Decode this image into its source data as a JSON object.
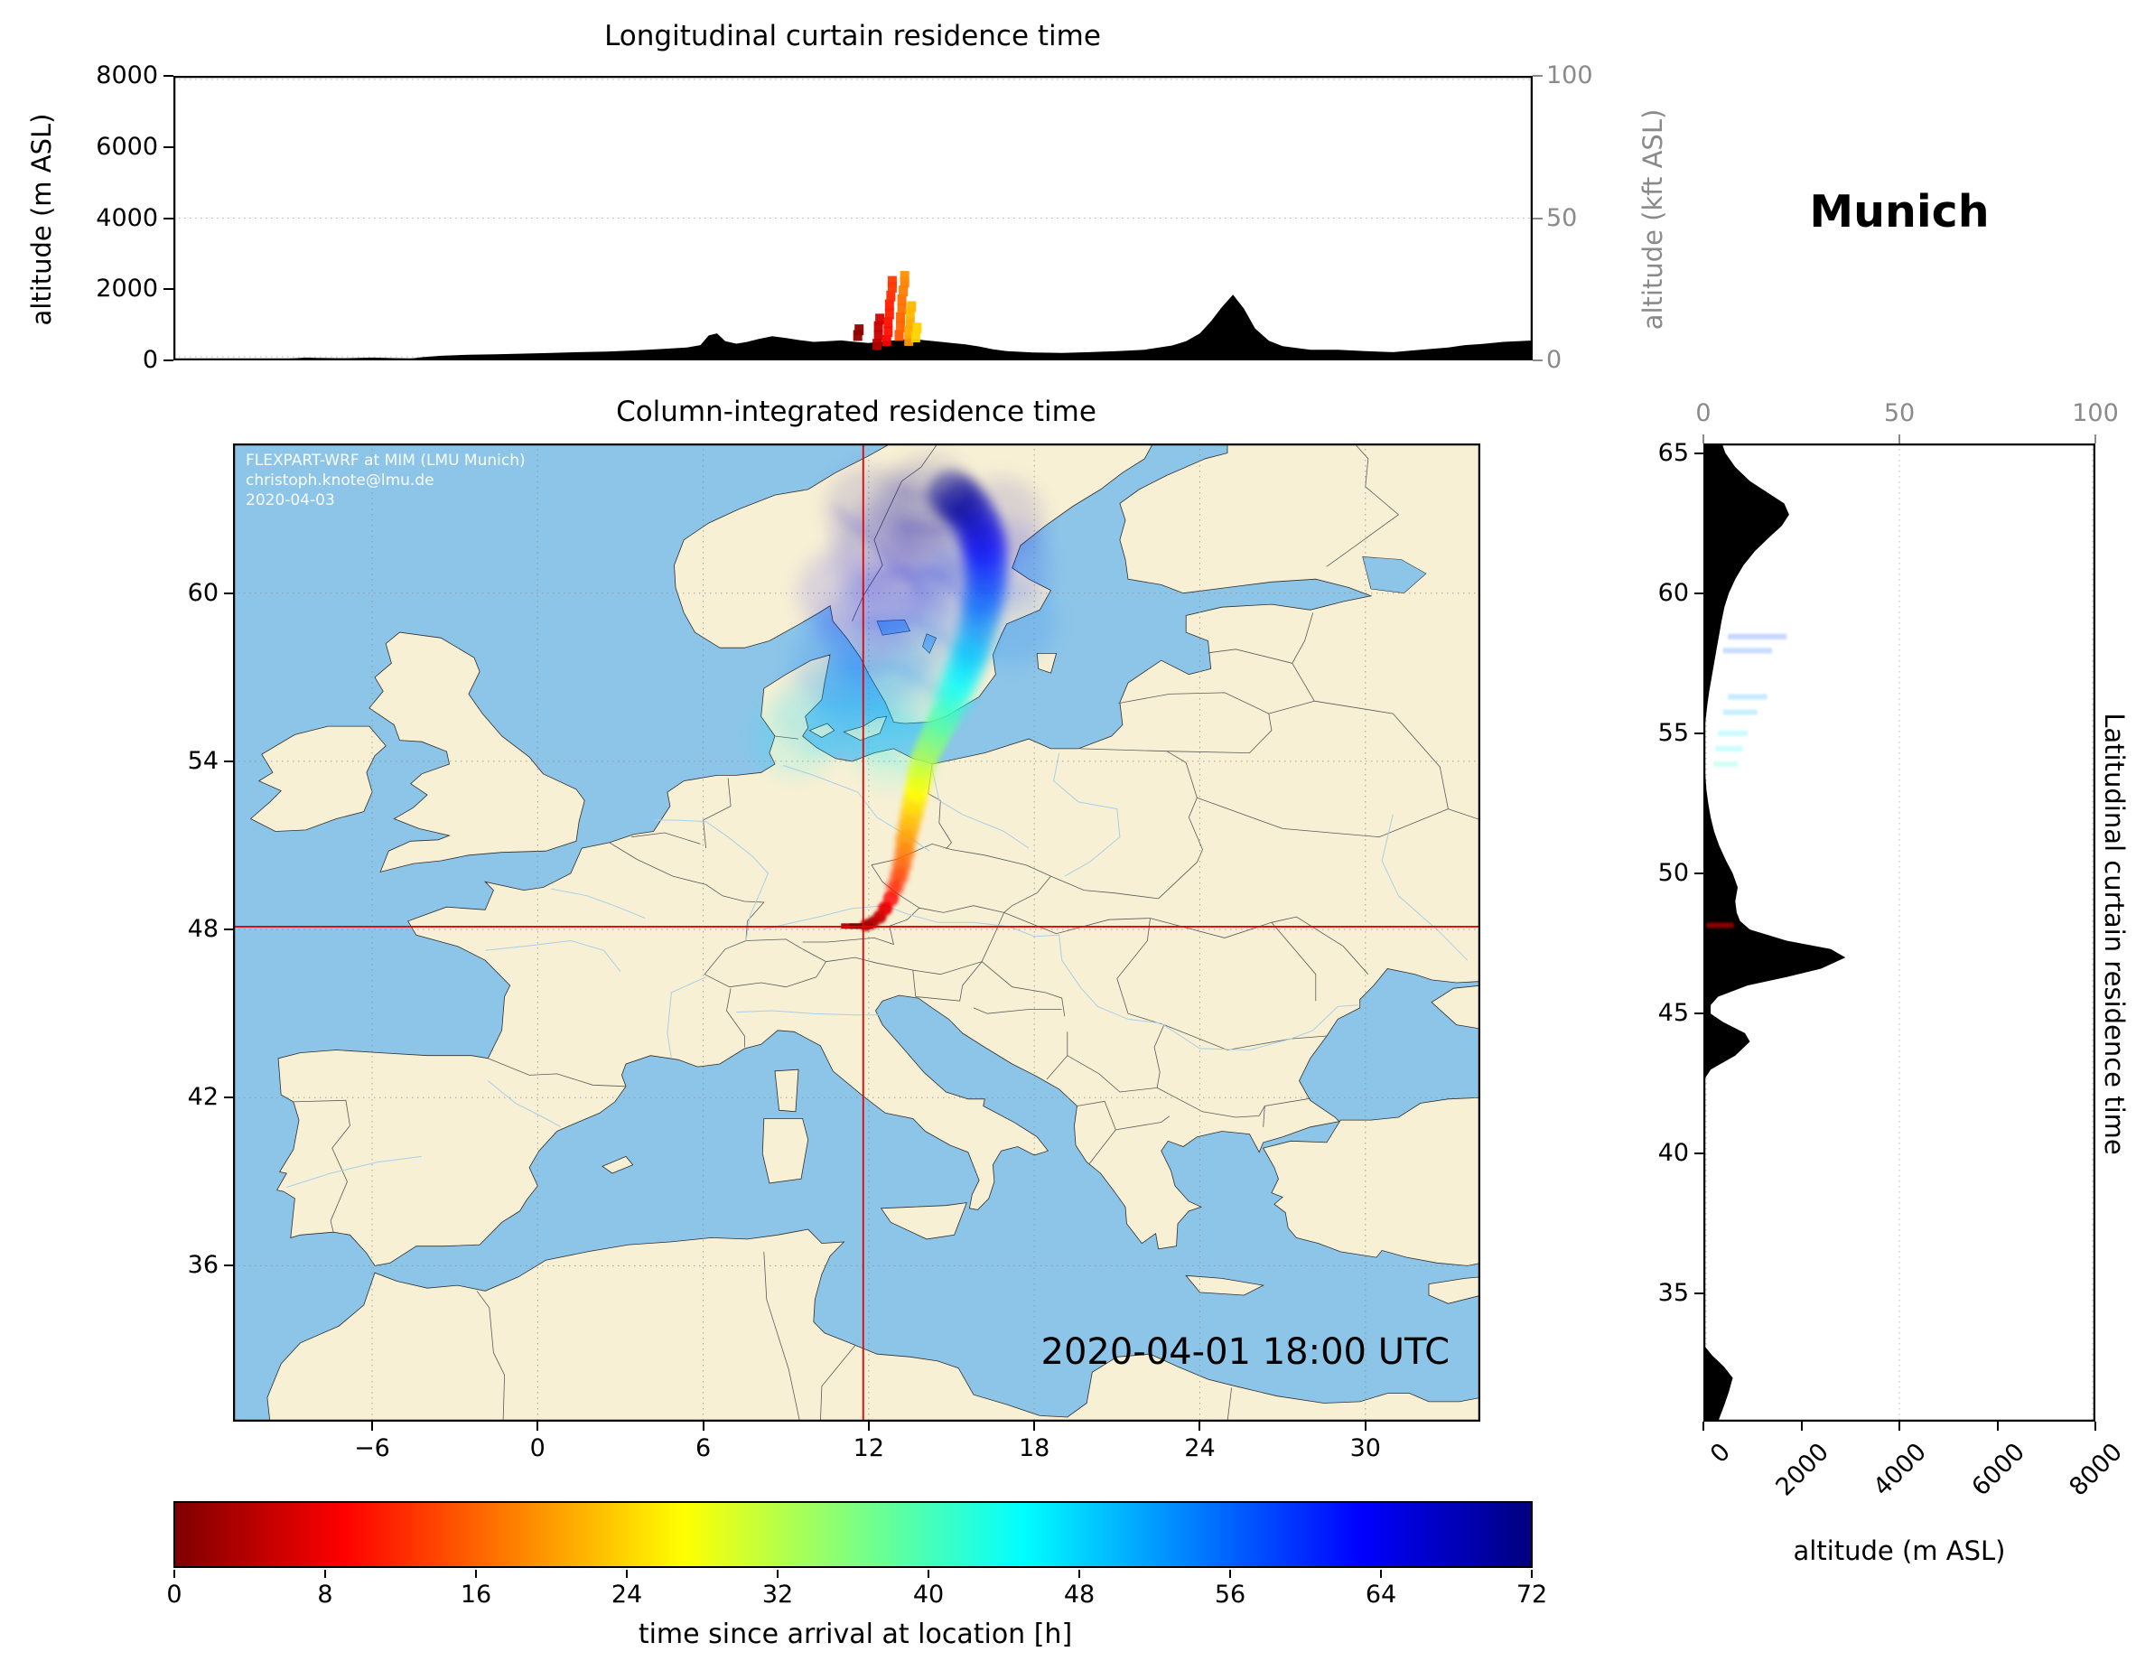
{
  "header": {
    "location_title": "Munich"
  },
  "top_panel": {
    "title": "Longitudinal curtain residence time",
    "ylabel_left": "altitude (m ASL)",
    "ylabel_right": "altitude (kft ASL)",
    "yticks_left": [
      "0",
      "2000",
      "4000",
      "6000",
      "8000"
    ],
    "yticks_right": [
      "0",
      "50",
      "100"
    ]
  },
  "map_panel": {
    "title": "Column-integrated residence time",
    "xticks": [
      "−6",
      "0",
      "6",
      "12",
      "18",
      "24",
      "30"
    ],
    "yticks": [
      "36",
      "42",
      "48",
      "54",
      "60"
    ],
    "watermark_line1": "FLEXPART-WRF at MIM (LMU Munich)",
    "watermark_line2": "christoph.knote@lmu.de",
    "watermark_line3": "2020-04-03",
    "timestamp": "2020-04-01 18:00 UTC"
  },
  "right_panel": {
    "ylabel_right": "Latitudinal curtain residence time",
    "xlabel_bottom": "altitude (m ASL)",
    "xticks_top": [
      "0",
      "50",
      "100"
    ],
    "xticks_bottom": [
      "0",
      "2000",
      "4000",
      "6000",
      "8000"
    ],
    "yticks": [
      "35",
      "40",
      "45",
      "50",
      "55",
      "60",
      "65"
    ]
  },
  "colorbar": {
    "label": "time since arrival at location [h]",
    "ticks": [
      "0",
      "8",
      "16",
      "24",
      "32",
      "40",
      "48",
      "56",
      "64",
      "72"
    ],
    "cmap_stops": [
      [
        0,
        "#7f0000"
      ],
      [
        0.125,
        "#ff0000"
      ],
      [
        0.375,
        "#ffff00"
      ],
      [
        0.625,
        "#00ffff"
      ],
      [
        0.875,
        "#0000ff"
      ],
      [
        1,
        "#00007f"
      ]
    ]
  },
  "colors": {
    "water": "#8cc5e8",
    "land": "#f8f0d4",
    "coast": "#2f2f2f",
    "crosshair": "#e60000",
    "terrain": "#000000",
    "secondary_axis": "#8a8a8a"
  },
  "chart_data": [
    {
      "id": "longitudinal_curtain",
      "type": "heatmap",
      "title": "Longitudinal curtain residence time",
      "xlim_lon": [
        -13.2,
        36.06
      ],
      "ylabel": "altitude (m ASL)",
      "ylim_m": [
        0,
        8000
      ],
      "yticks_m": [
        0,
        2000,
        4000,
        6000,
        8000
      ],
      "y2label": "altitude (kft ASL)",
      "y2ticks_kft": [
        0,
        50,
        100
      ],
      "terrain_profile": {
        "lon": [
          -13.2,
          -12,
          -11,
          -9.6,
          -9,
          -8.4,
          -8,
          -7,
          -6,
          -5,
          -4.6,
          -4.2,
          -3.5,
          -2.5,
          -1.5,
          -0.5,
          0.5,
          1.5,
          2.5,
          3.5,
          4.5,
          5.4,
          5.9,
          6.2,
          6.5,
          6.8,
          7.2,
          7.6,
          8,
          8.5,
          9,
          9.5,
          10,
          10.5,
          11,
          11.5,
          12,
          12.5,
          13,
          13.5,
          14,
          14.5,
          15,
          15.5,
          16,
          16.5,
          17,
          18,
          19,
          20,
          21,
          22,
          23,
          23.5,
          24,
          24.4,
          24.8,
          25.2,
          25.6,
          26,
          26.5,
          27,
          28,
          29,
          30,
          31,
          32,
          33,
          33.6,
          34.2,
          35,
          36.1
        ],
        "elev_m": [
          0,
          0,
          0,
          0,
          50,
          80,
          70,
          60,
          80,
          60,
          50,
          90,
          130,
          160,
          170,
          190,
          210,
          230,
          250,
          280,
          320,
          360,
          430,
          700,
          760,
          540,
          470,
          520,
          600,
          680,
          630,
          570,
          520,
          540,
          560,
          520,
          490,
          530,
          570,
          610,
          570,
          530,
          490,
          450,
          390,
          310,
          260,
          220,
          210,
          230,
          260,
          300,
          420,
          540,
          760,
          1100,
          1500,
          1850,
          1450,
          900,
          550,
          400,
          300,
          300,
          260,
          230,
          300,
          360,
          430,
          460,
          520,
          560
        ]
      },
      "plume_cells": {
        "columns": [
          "lon",
          "alt_m",
          "hours"
        ],
        "rows": [
          [
            11.6,
            700,
            1
          ],
          [
            11.65,
            860,
            1
          ],
          [
            12.3,
            450,
            4
          ],
          [
            12.35,
            700,
            5
          ],
          [
            12.35,
            950,
            5
          ],
          [
            12.4,
            1160,
            6
          ],
          [
            12.65,
            560,
            9
          ],
          [
            12.7,
            810,
            10
          ],
          [
            12.7,
            1060,
            10
          ],
          [
            12.75,
            1310,
            11
          ],
          [
            12.75,
            1560,
            11
          ],
          [
            12.8,
            1810,
            12
          ],
          [
            12.85,
            2060,
            13
          ],
          [
            12.85,
            2220,
            13
          ],
          [
            13.1,
            700,
            15
          ],
          [
            13.15,
            950,
            16
          ],
          [
            13.15,
            1200,
            16
          ],
          [
            13.2,
            1450,
            17
          ],
          [
            13.2,
            1700,
            17
          ],
          [
            13.25,
            1950,
            18
          ],
          [
            13.3,
            2200,
            18
          ],
          [
            13.3,
            2360,
            19
          ],
          [
            13.45,
            560,
            20
          ],
          [
            13.45,
            810,
            21
          ],
          [
            13.5,
            1060,
            21
          ],
          [
            13.5,
            1310,
            22
          ],
          [
            13.55,
            1510,
            22
          ],
          [
            13.7,
            660,
            24
          ],
          [
            13.75,
            910,
            24
          ]
        ]
      }
    },
    {
      "id": "column_map",
      "type": "heatmap",
      "title": "Column-integrated residence time",
      "extent": {
        "lon": [
          -11.04,
          34.16
        ],
        "lat": [
          30.44,
          65.34
        ]
      },
      "xticks_lon": [
        -6,
        0,
        6,
        12,
        18,
        24,
        30
      ],
      "yticks_lat": [
        36,
        42,
        48,
        54,
        60
      ],
      "crosshair": {
        "lon": 11.8,
        "lat": 48.1
      },
      "source_bars": [
        {
          "lon0": 11.0,
          "lon1": 12.15,
          "lat": 48.12,
          "hours": 3
        },
        {
          "lon0": 11.3,
          "lon1": 11.8,
          "lat": 48.12,
          "hours": 0
        }
      ],
      "track": {
        "columns": [
          "lon",
          "lat",
          "hours"
        ],
        "rows": [
          [
            11.9,
            48.15,
            2
          ],
          [
            12.15,
            48.25,
            3
          ],
          [
            12.4,
            48.45,
            5
          ],
          [
            12.6,
            48.75,
            7
          ],
          [
            12.8,
            49.1,
            9
          ],
          [
            12.95,
            49.5,
            11
          ],
          [
            13.1,
            49.9,
            13
          ],
          [
            13.2,
            50.3,
            15
          ],
          [
            13.3,
            50.75,
            17
          ],
          [
            13.35,
            51.2,
            19
          ],
          [
            13.45,
            51.65,
            21
          ],
          [
            13.55,
            52.1,
            23
          ],
          [
            13.65,
            52.55,
            25
          ],
          [
            13.75,
            53.0,
            27
          ],
          [
            13.85,
            53.45,
            29
          ],
          [
            13.95,
            53.9,
            31
          ],
          [
            14.1,
            54.3,
            33
          ],
          [
            14.3,
            54.7,
            35
          ],
          [
            14.5,
            55.1,
            37
          ],
          [
            14.7,
            55.5,
            39
          ],
          [
            14.9,
            55.95,
            41
          ],
          [
            15.1,
            56.4,
            43
          ],
          [
            15.3,
            56.9,
            45
          ],
          [
            15.5,
            57.4,
            47
          ],
          [
            15.7,
            57.9,
            49
          ],
          [
            15.85,
            58.4,
            51
          ],
          [
            16.0,
            58.95,
            53
          ],
          [
            16.1,
            59.5,
            55
          ],
          [
            16.2,
            60.05,
            57
          ],
          [
            16.25,
            60.6,
            59
          ],
          [
            16.25,
            61.15,
            61
          ],
          [
            16.2,
            61.7,
            63
          ],
          [
            16.05,
            62.2,
            65
          ],
          [
            15.8,
            62.7,
            67
          ],
          [
            15.45,
            63.15,
            69
          ],
          [
            15.05,
            63.5,
            71
          ]
        ]
      },
      "diffuse": {
        "columns": [
          "lon",
          "lat",
          "hours"
        ],
        "rows": [
          [
            13.0,
            54.5,
            44
          ],
          [
            12.3,
            55.5,
            48
          ],
          [
            11.5,
            56.5,
            52
          ],
          [
            12.5,
            57.5,
            55
          ],
          [
            13.5,
            58.5,
            58
          ],
          [
            12.8,
            59.8,
            62
          ],
          [
            13.8,
            60.8,
            65
          ],
          [
            14.6,
            61.8,
            68
          ],
          [
            13.5,
            62.8,
            70
          ],
          [
            11.8,
            58.8,
            60
          ],
          [
            10.8,
            57.5,
            56
          ],
          [
            14.8,
            59.8,
            60
          ],
          [
            17.2,
            59.0,
            56
          ],
          [
            17.0,
            61.0,
            62
          ],
          [
            16.8,
            62.6,
            68
          ],
          [
            12.2,
            61.5,
            66
          ],
          [
            14.2,
            63.4,
            71
          ],
          [
            10.2,
            55.8,
            50
          ],
          [
            9.4,
            54.9,
            46
          ],
          [
            13.2,
            56.3,
            50
          ],
          [
            14.4,
            57.6,
            52
          ],
          [
            15.5,
            60.5,
            58
          ],
          [
            11.0,
            60.0,
            63
          ],
          [
            12.0,
            63.0,
            69
          ]
        ]
      },
      "filaments": [
        {
          "hours": 46,
          "pts": [
            [
              13.8,
              53.6
            ],
            [
              11.8,
              54.5
            ],
            [
              9.8,
              54.4
            ]
          ]
        },
        {
          "hours": 50,
          "pts": [
            [
              14.4,
              54.9
            ],
            [
              12.2,
              56.0
            ],
            [
              10.3,
              55.9
            ]
          ]
        },
        {
          "hours": 54,
          "pts": [
            [
              15.0,
              56.2
            ],
            [
              13.0,
              57.4
            ],
            [
              11.0,
              57.2
            ]
          ]
        },
        {
          "hours": 58,
          "pts": [
            [
              15.6,
              57.7
            ],
            [
              13.7,
              59.1
            ],
            [
              11.7,
              58.9
            ]
          ]
        },
        {
          "hours": 62,
          "pts": [
            [
              16.0,
              59.2
            ],
            [
              14.6,
              60.7
            ],
            [
              12.6,
              60.7
            ]
          ]
        },
        {
          "hours": 66,
          "pts": [
            [
              16.2,
              60.8
            ],
            [
              15.0,
              62.2
            ],
            [
              13.2,
              62.4
            ]
          ]
        },
        {
          "hours": 69,
          "pts": [
            [
              15.8,
              62.4
            ],
            [
              14.6,
              63.4
            ],
            [
              13.2,
              63.6
            ]
          ]
        },
        {
          "hours": 66,
          "pts": [
            [
              14.0,
              60.0
            ],
            [
              12.0,
              62.0
            ],
            [
              10.8,
              63.0
            ]
          ]
        }
      ]
    },
    {
      "id": "latitudinal_curtain",
      "type": "heatmap",
      "title": "Latitudinal curtain residence time",
      "xlabel": "altitude (m ASL)",
      "xlim_m": [
        0,
        8000
      ],
      "xticks_m": [
        0,
        2000,
        4000,
        6000,
        8000
      ],
      "x2ticks_kft": [
        0,
        50,
        100
      ],
      "ylim_lat": [
        30.44,
        65.34
      ],
      "yticks_lat": [
        35,
        40,
        45,
        50,
        55,
        60,
        65
      ],
      "terrain_profile": {
        "lat": [
          30.44,
          31,
          31.5,
          32,
          32.4,
          32.8,
          33.1,
          33.3,
          36,
          42.6,
          43,
          43.5,
          44,
          44.3,
          44.7,
          45,
          45.3,
          45.6,
          46,
          46.3,
          46.6,
          47,
          47.3,
          47.6,
          48,
          48.3,
          48.6,
          49,
          49.5,
          50,
          50.5,
          51,
          51.5,
          52,
          52.5,
          53,
          53.5,
          54,
          54.4,
          54.8,
          55.4,
          56,
          56.5,
          57,
          57.5,
          58,
          58.5,
          59,
          59.5,
          60,
          60.5,
          61,
          61.5,
          62,
          62.4,
          62.8,
          63.2,
          63.6,
          64,
          64.5,
          65,
          65.34
        ],
        "elev_m": [
          300,
          420,
          520,
          600,
          420,
          180,
          40,
          0,
          0,
          0,
          150,
          650,
          950,
          850,
          400,
          150,
          150,
          300,
          900,
          1700,
          2400,
          2900,
          2600,
          1700,
          950,
          750,
          680,
          650,
          700,
          600,
          450,
          320,
          220,
          150,
          100,
          60,
          40,
          15,
          0,
          0,
          40,
          80,
          120,
          170,
          220,
          270,
          320,
          370,
          430,
          520,
          650,
          820,
          1050,
          1350,
          1600,
          1750,
          1650,
          1300,
          950,
          650,
          450,
          380
        ]
      },
      "plume_cells": {
        "columns": [
          "lat",
          "alt_min_m",
          "alt_max_m",
          "hours"
        ],
        "rows": [
          [
            48.15,
            60,
            620,
            2
          ],
          [
            53.9,
            200,
            700,
            42
          ],
          [
            54.45,
            250,
            800,
            44
          ],
          [
            55.0,
            300,
            900,
            46
          ],
          [
            55.75,
            400,
            1100,
            50
          ],
          [
            56.3,
            500,
            1300,
            52
          ],
          [
            57.95,
            400,
            1400,
            56
          ],
          [
            58.45,
            500,
            1700,
            58
          ]
        ]
      }
    }
  ]
}
